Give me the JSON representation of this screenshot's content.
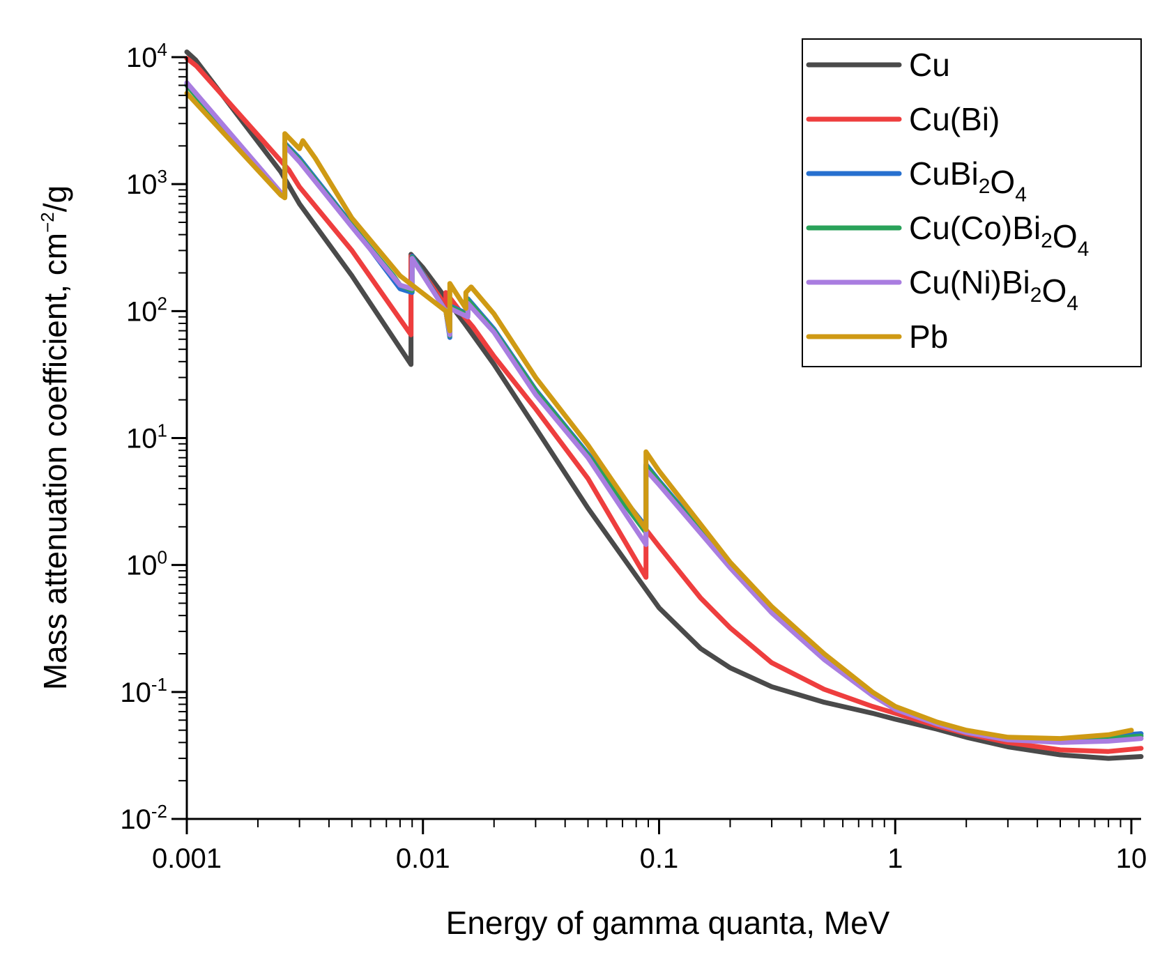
{
  "chart_data": {
    "type": "line",
    "xscale": "log",
    "yscale": "log",
    "xlabel": "Energy of gamma quanta, MeV",
    "ylabel_main": "Mass attenuation coefficient, cm",
    "ylabel_sup": "−2",
    "ylabel_tail": "/g",
    "xlim": [
      0.001,
      11
    ],
    "ylim": [
      0.01,
      10000
    ],
    "x_ticks": [
      {
        "value": 0.001,
        "label": "0.001"
      },
      {
        "value": 0.01,
        "label": "0.01"
      },
      {
        "value": 0.1,
        "label": "0.1"
      },
      {
        "value": 1,
        "label": "1"
      },
      {
        "value": 10,
        "label": "10"
      }
    ],
    "y_ticks": [
      {
        "value": 10000,
        "base": "10",
        "exp": "4"
      },
      {
        "value": 1000,
        "base": "10",
        "exp": "3"
      },
      {
        "value": 100,
        "base": "10",
        "exp": "2"
      },
      {
        "value": 10,
        "base": "10",
        "exp": "1"
      },
      {
        "value": 1,
        "base": "10",
        "exp": "0"
      },
      {
        "value": 0.1,
        "base": "10",
        "exp": "-1"
      },
      {
        "value": 0.01,
        "base": "10",
        "exp": "-2"
      }
    ],
    "legend_position": "top-right",
    "series": [
      {
        "name": "Cu",
        "color": "#4a4a4a",
        "points": [
          [
            0.001,
            11000
          ],
          [
            0.00109,
            9500
          ],
          [
            0.0025,
            1250
          ],
          [
            0.003,
            700
          ],
          [
            0.005,
            190
          ],
          [
            0.0089,
            38
          ],
          [
            0.0089,
            280
          ],
          [
            0.01,
            220
          ],
          [
            0.015,
            80
          ],
          [
            0.02,
            38
          ],
          [
            0.03,
            12
          ],
          [
            0.05,
            2.8
          ],
          [
            0.08,
            0.82
          ],
          [
            0.1,
            0.46
          ],
          [
            0.15,
            0.22
          ],
          [
            0.2,
            0.155
          ],
          [
            0.3,
            0.11
          ],
          [
            0.5,
            0.083
          ],
          [
            0.8,
            0.068
          ],
          [
            1,
            0.061
          ],
          [
            1.5,
            0.051
          ],
          [
            2,
            0.044
          ],
          [
            3,
            0.037
          ],
          [
            5,
            0.032
          ],
          [
            8,
            0.03
          ],
          [
            11,
            0.031
          ]
        ]
      },
      {
        "name": "Cu(Bi)",
        "color": "#ee3e3e",
        "points": [
          [
            0.001,
            9800
          ],
          [
            0.0011,
            8500
          ],
          [
            0.0027,
            1300
          ],
          [
            0.003,
            950
          ],
          [
            0.005,
            300
          ],
          [
            0.0089,
            65
          ],
          [
            0.0089,
            270
          ],
          [
            0.0125,
            110
          ],
          [
            0.0125,
            140
          ],
          [
            0.015,
            90
          ],
          [
            0.0163,
            75
          ],
          [
            0.02,
            44
          ],
          [
            0.03,
            17
          ],
          [
            0.05,
            4.8
          ],
          [
            0.088,
            0.8
          ],
          [
            0.088,
            1.9
          ],
          [
            0.1,
            1.4
          ],
          [
            0.15,
            0.55
          ],
          [
            0.2,
            0.32
          ],
          [
            0.3,
            0.17
          ],
          [
            0.5,
            0.105
          ],
          [
            0.8,
            0.077
          ],
          [
            1,
            0.068
          ],
          [
            1.5,
            0.054
          ],
          [
            2,
            0.047
          ],
          [
            3,
            0.04
          ],
          [
            5,
            0.035
          ],
          [
            8,
            0.034
          ],
          [
            11,
            0.036
          ]
        ]
      },
      {
        "name": "CuBi₂O₄",
        "color": "#2770cf",
        "points": [
          [
            0.001,
            6200
          ],
          [
            0.0025,
            850
          ],
          [
            0.0026,
            800
          ],
          [
            0.0026,
            2100
          ],
          [
            0.003,
            1600
          ],
          [
            0.005,
            480
          ],
          [
            0.008,
            150
          ],
          [
            0.009,
            140
          ],
          [
            0.009,
            270
          ],
          [
            0.0125,
            100
          ],
          [
            0.013,
            62
          ],
          [
            0.013,
            110
          ],
          [
            0.0155,
            95
          ],
          [
            0.0155,
            125
          ],
          [
            0.02,
            72
          ],
          [
            0.03,
            24
          ],
          [
            0.05,
            7.5
          ],
          [
            0.088,
            2.0
          ],
          [
            0.088,
            6.2
          ],
          [
            0.1,
            4.6
          ],
          [
            0.2,
            1.0
          ],
          [
            0.3,
            0.45
          ],
          [
            0.5,
            0.19
          ],
          [
            0.8,
            0.098
          ],
          [
            1,
            0.075
          ],
          [
            1.5,
            0.057
          ],
          [
            2,
            0.049
          ],
          [
            3,
            0.043
          ],
          [
            5,
            0.042
          ],
          [
            8,
            0.045
          ],
          [
            11,
            0.047
          ]
        ]
      },
      {
        "name": "Cu(Co)Bi₂O₄",
        "color": "#2aa25a",
        "points": [
          [
            0.001,
            6000
          ],
          [
            0.0025,
            840
          ],
          [
            0.0026,
            790
          ],
          [
            0.0026,
            2050
          ],
          [
            0.003,
            1550
          ],
          [
            0.005,
            470
          ],
          [
            0.0075,
            190
          ],
          [
            0.008,
            160
          ],
          [
            0.009,
            145
          ],
          [
            0.009,
            265
          ],
          [
            0.0125,
            100
          ],
          [
            0.013,
            64
          ],
          [
            0.013,
            108
          ],
          [
            0.0155,
            93
          ],
          [
            0.0155,
            122
          ],
          [
            0.02,
            70
          ],
          [
            0.03,
            23.5
          ],
          [
            0.05,
            7.3
          ],
          [
            0.088,
            1.8
          ],
          [
            0.088,
            6.0
          ],
          [
            0.1,
            4.5
          ],
          [
            0.2,
            0.98
          ],
          [
            0.3,
            0.44
          ],
          [
            0.5,
            0.185
          ],
          [
            0.8,
            0.096
          ],
          [
            1,
            0.074
          ],
          [
            1.5,
            0.056
          ],
          [
            2,
            0.048
          ],
          [
            3,
            0.042
          ],
          [
            5,
            0.041
          ],
          [
            8,
            0.043
          ],
          [
            11,
            0.045
          ]
        ]
      },
      {
        "name": "Cu(Ni)Bi₂O₄",
        "color": "#a97de0",
        "points": [
          [
            0.001,
            6300
          ],
          [
            0.0025,
            860
          ],
          [
            0.0026,
            810
          ],
          [
            0.0026,
            2000
          ],
          [
            0.003,
            1500
          ],
          [
            0.005,
            460
          ],
          [
            0.008,
            160
          ],
          [
            0.009,
            150
          ],
          [
            0.009,
            260
          ],
          [
            0.0125,
            100
          ],
          [
            0.013,
            65
          ],
          [
            0.013,
            105
          ],
          [
            0.0155,
            90
          ],
          [
            0.0155,
            115
          ],
          [
            0.02,
            68
          ],
          [
            0.03,
            22
          ],
          [
            0.05,
            7.0
          ],
          [
            0.088,
            1.45
          ],
          [
            0.088,
            5.6
          ],
          [
            0.1,
            4.3
          ],
          [
            0.2,
            0.95
          ],
          [
            0.3,
            0.42
          ],
          [
            0.5,
            0.18
          ],
          [
            0.8,
            0.094
          ],
          [
            1,
            0.073
          ],
          [
            1.5,
            0.056
          ],
          [
            2,
            0.048
          ],
          [
            3,
            0.042
          ],
          [
            5,
            0.04
          ],
          [
            8,
            0.041
          ],
          [
            11,
            0.043
          ]
        ]
      },
      {
        "name": "Pb",
        "color": "#cf9a14",
        "points": [
          [
            0.001,
            5200
          ],
          [
            0.0025,
            820
          ],
          [
            0.0026,
            780
          ],
          [
            0.0026,
            2500
          ],
          [
            0.003,
            1900
          ],
          [
            0.0031,
            2200
          ],
          [
            0.0035,
            1600
          ],
          [
            0.005,
            540
          ],
          [
            0.008,
            190
          ],
          [
            0.0125,
            100
          ],
          [
            0.013,
            70
          ],
          [
            0.013,
            165
          ],
          [
            0.0152,
            105
          ],
          [
            0.0152,
            140
          ],
          [
            0.016,
            155
          ],
          [
            0.02,
            95
          ],
          [
            0.03,
            30
          ],
          [
            0.05,
            8.8
          ],
          [
            0.088,
            1.9
          ],
          [
            0.088,
            7.8
          ],
          [
            0.1,
            5.5
          ],
          [
            0.2,
            1.05
          ],
          [
            0.3,
            0.47
          ],
          [
            0.5,
            0.2
          ],
          [
            0.8,
            0.1
          ],
          [
            1,
            0.077
          ],
          [
            1.5,
            0.058
          ],
          [
            2,
            0.05
          ],
          [
            3,
            0.044
          ],
          [
            5,
            0.043
          ],
          [
            8,
            0.046
          ],
          [
            10,
            0.05
          ]
        ]
      }
    ]
  }
}
